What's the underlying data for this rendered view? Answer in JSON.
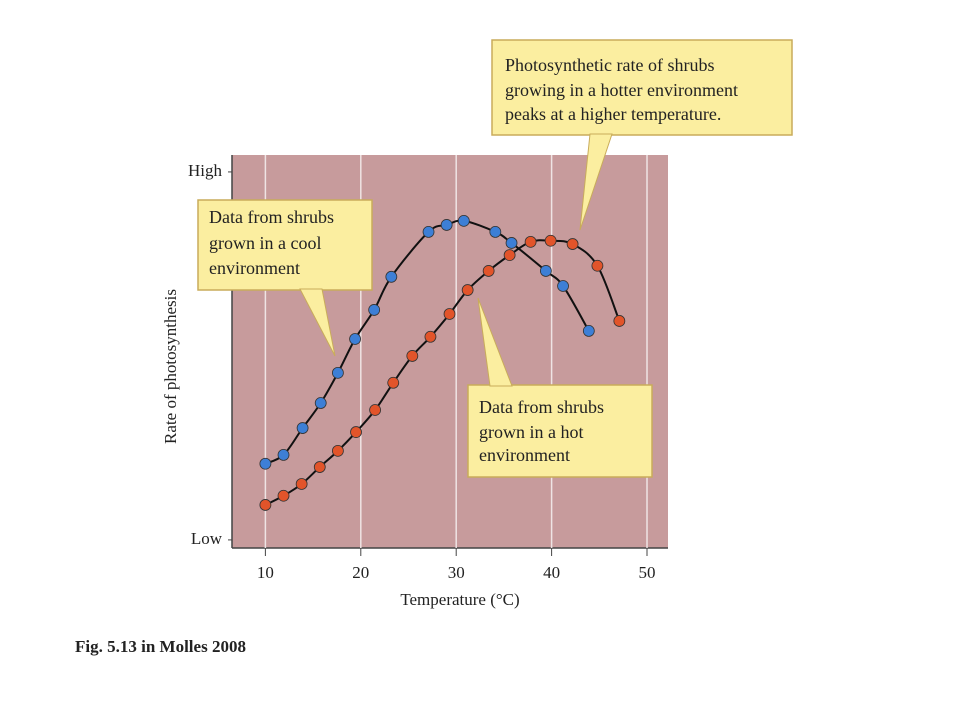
{
  "chart_data": {
    "type": "line",
    "x_label": "Temperature (°C)",
    "y_label": "Rate of photosynthesis",
    "caption": "Fig. 5.13 in Molles 2008",
    "xlim": [
      6.5,
      52.2
    ],
    "xticks": [
      10,
      20,
      30,
      40,
      50
    ],
    "ylim": [
      -2.2,
      104.6
    ],
    "yticks": [
      {
        "value": 0,
        "label": "Low"
      },
      {
        "value": 100,
        "label": "High"
      }
    ],
    "grid": true,
    "background": "#c79b9c",
    "series": [
      {
        "color": "#3d7fd6",
        "x": [
          10.0,
          11.9,
          13.9,
          15.8,
          17.6,
          19.4,
          21.4,
          23.2,
          27.1,
          29.0,
          30.8,
          34.1,
          35.8,
          39.4,
          41.2,
          43.9
        ],
        "values": [
          20.7,
          23.1,
          30.4,
          37.2,
          45.4,
          54.6,
          62.5,
          71.5,
          83.7,
          85.6,
          86.7,
          83.7,
          80.7,
          73.1,
          69.0,
          56.8
        ]
      },
      {
        "color": "#e2542a",
        "x": [
          10.0,
          11.9,
          13.8,
          15.7,
          17.6,
          19.5,
          21.5,
          23.4,
          25.4,
          27.3,
          29.3,
          31.2,
          33.4,
          35.6,
          37.8,
          39.9,
          42.2,
          44.8,
          47.1
        ],
        "values": [
          9.5,
          12.0,
          15.2,
          19.8,
          24.2,
          29.3,
          35.3,
          42.7,
          50.0,
          55.2,
          61.4,
          67.9,
          73.1,
          77.4,
          81.0,
          81.3,
          80.4,
          74.5,
          59.5
        ]
      }
    ],
    "annotations": [
      {
        "text": [
          "Photosynthetic rate of shrubs",
          "growing in a hotter environment",
          "peaks at a higher temperature."
        ]
      },
      {
        "text": [
          "Data from shrubs",
          "grown in a cool",
          "environment"
        ]
      },
      {
        "text": [
          "Data from shrubs",
          "grown in a hot",
          "environment"
        ]
      }
    ]
  }
}
